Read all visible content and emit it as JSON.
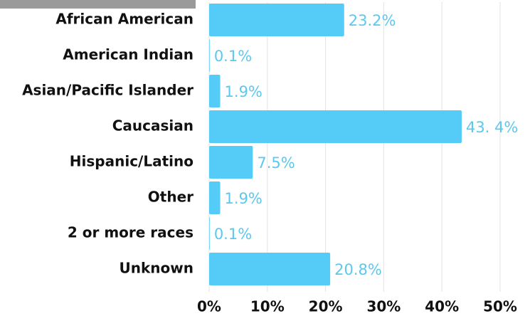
{
  "chart_data": {
    "type": "barh",
    "categories": [
      "African American",
      "American Indian",
      "Asian/Pacific Islander",
      "Caucasian",
      "Hispanic/Latino",
      "Other",
      "2 or more races",
      "Unknown"
    ],
    "values": [
      23.2,
      0.1,
      1.9,
      43.4,
      7.5,
      1.9,
      0.1,
      20.8
    ],
    "value_labels": [
      "23.2%",
      "0.1%",
      "1.9%",
      "43. 4%",
      "7.5%",
      "1.9%",
      "0.1%",
      "20.8%"
    ],
    "color": "#55ccf8",
    "xlim": [
      0,
      50
    ],
    "xticks": [
      {
        "value": 0,
        "label": "0%"
      },
      {
        "value": 10,
        "label": "10%"
      },
      {
        "value": 20,
        "label": "20%"
      },
      {
        "value": 30,
        "label": "30%"
      },
      {
        "value": 40,
        "label": "40%"
      },
      {
        "value": 50,
        "label": "50%"
      }
    ],
    "grid": true
  }
}
